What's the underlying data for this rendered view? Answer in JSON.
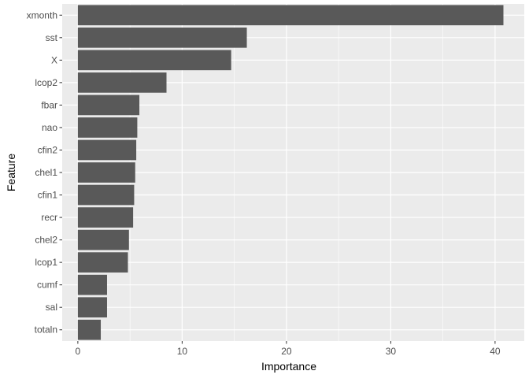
{
  "chart_data": {
    "type": "bar",
    "orientation": "horizontal",
    "title": "",
    "xlabel": "Importance",
    "ylabel": "Feature",
    "xlim": [
      -1.5,
      42.8
    ],
    "xticks": [
      0,
      10,
      20,
      30,
      40
    ],
    "xtick_labels": [
      "0",
      "10",
      "20",
      "30",
      "40"
    ],
    "grid": true,
    "legend": "none",
    "bar_color": "#595959",
    "panel_color": "#EBEBEB",
    "categories": [
      "xmonth",
      "sst",
      "X",
      "lcop2",
      "fbar",
      "nao",
      "cfin2",
      "chel1",
      "cfin1",
      "recr",
      "chel2",
      "lcop1",
      "cumf",
      "sal",
      "totaln"
    ],
    "values": [
      40.8,
      16.2,
      14.7,
      8.5,
      5.9,
      5.7,
      5.6,
      5.5,
      5.4,
      5.3,
      4.9,
      4.8,
      2.8,
      2.8,
      2.2
    ]
  }
}
